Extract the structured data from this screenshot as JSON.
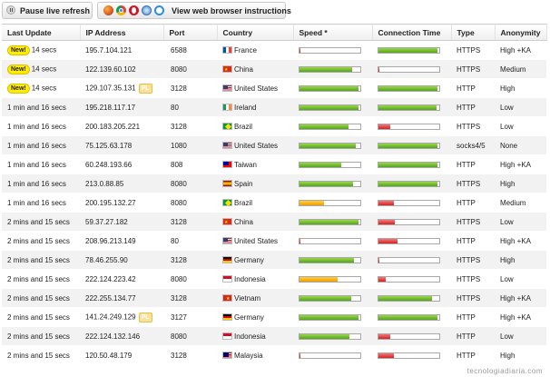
{
  "toolbar": {
    "pause_label": "Pause live refresh",
    "instructions_label": "View web browser instructions",
    "browser_icons": [
      "firefox-icon",
      "chrome-icon",
      "opera-icon",
      "safari-icon",
      "ie-icon"
    ]
  },
  "table": {
    "headers": [
      "Last Update",
      "IP Address",
      "Port",
      "Country",
      "Speed *",
      "Connection Time",
      "Type",
      "Anonymity"
    ],
    "new_badge": "New!",
    "pl_badge": "PL",
    "rows": [
      {
        "update": "14 secs",
        "new": true,
        "ip": "195.7.104.121",
        "pl": false,
        "port": "6588",
        "country": "France",
        "flag": "france",
        "speed": 0.02,
        "speed_color": "red",
        "conn": 0.97,
        "conn_color": "green",
        "type": "HTTPS",
        "anonymity": "High +KA"
      },
      {
        "update": "14 secs",
        "new": true,
        "ip": "122.139.60.102",
        "pl": false,
        "port": "8080",
        "country": "China",
        "flag": "china",
        "speed": 0.87,
        "speed_color": "green",
        "conn": 0.02,
        "conn_color": "red",
        "type": "HTTPS",
        "anonymity": "Medium"
      },
      {
        "update": "14 secs",
        "new": true,
        "ip": "129.107.35.131",
        "pl": true,
        "port": "3128",
        "country": "United States",
        "flag": "us",
        "speed": 0.97,
        "speed_color": "green",
        "conn": 0.97,
        "conn_color": "green",
        "type": "HTTP",
        "anonymity": "High"
      },
      {
        "update": "1 min and 16 secs",
        "new": false,
        "ip": "195.218.117.17",
        "pl": false,
        "port": "80",
        "country": "Ireland",
        "flag": "ireland",
        "speed": 0.97,
        "speed_color": "green",
        "conn": 0.95,
        "conn_color": "green",
        "type": "HTTP",
        "anonymity": "Low"
      },
      {
        "update": "1 min and 16 secs",
        "new": false,
        "ip": "200.183.205.221",
        "pl": false,
        "port": "3128",
        "country": "Brazil",
        "flag": "brazil",
        "speed": 0.8,
        "speed_color": "green",
        "conn": 0.2,
        "conn_color": "red",
        "type": "HTTPS",
        "anonymity": "Low"
      },
      {
        "update": "1 min and 16 secs",
        "new": false,
        "ip": "75.125.63.178",
        "pl": false,
        "port": "1080",
        "country": "United States",
        "flag": "us",
        "speed": 0.92,
        "speed_color": "green",
        "conn": 0.97,
        "conn_color": "green",
        "type": "socks4/5",
        "anonymity": "None"
      },
      {
        "update": "1 min and 16 secs",
        "new": false,
        "ip": "60.248.193.66",
        "pl": false,
        "port": "808",
        "country": "Taiwan",
        "flag": "taiwan",
        "speed": 0.68,
        "speed_color": "green",
        "conn": 0.97,
        "conn_color": "green",
        "type": "HTTP",
        "anonymity": "High +KA"
      },
      {
        "update": "1 min and 16 secs",
        "new": false,
        "ip": "213.0.88.85",
        "pl": false,
        "port": "8080",
        "country": "Spain",
        "flag": "spain",
        "speed": 0.88,
        "speed_color": "green",
        "conn": 0.97,
        "conn_color": "green",
        "type": "HTTPS",
        "anonymity": "High"
      },
      {
        "update": "1 min and 16 secs",
        "new": false,
        "ip": "200.195.132.27",
        "pl": false,
        "port": "8080",
        "country": "Brazil",
        "flag": "brazil",
        "speed": 0.4,
        "speed_color": "orange",
        "conn": 0.25,
        "conn_color": "red",
        "type": "HTTP",
        "anonymity": "Medium"
      },
      {
        "update": "2 mins and 15 secs",
        "new": false,
        "ip": "59.37.27.182",
        "pl": false,
        "port": "3128",
        "country": "China",
        "flag": "china",
        "speed": 0.97,
        "speed_color": "green",
        "conn": 0.27,
        "conn_color": "red",
        "type": "HTTPS",
        "anonymity": "Low"
      },
      {
        "update": "2 mins and 15 secs",
        "new": false,
        "ip": "208.96.213.149",
        "pl": false,
        "port": "80",
        "country": "United States",
        "flag": "us",
        "speed": 0.02,
        "speed_color": "red",
        "conn": 0.32,
        "conn_color": "red",
        "type": "HTTP",
        "anonymity": "High +KA"
      },
      {
        "update": "2 mins and 15 secs",
        "new": false,
        "ip": "78.46.255.90",
        "pl": false,
        "port": "3128",
        "country": "Germany",
        "flag": "germany",
        "speed": 0.9,
        "speed_color": "green",
        "conn": 0.02,
        "conn_color": "red",
        "type": "HTTPS",
        "anonymity": "High"
      },
      {
        "update": "2 mins and 15 secs",
        "new": false,
        "ip": "222.124.223.42",
        "pl": false,
        "port": "8080",
        "country": "Indonesia",
        "flag": "indonesia",
        "speed": 0.62,
        "speed_color": "orange",
        "conn": 0.12,
        "conn_color": "red",
        "type": "HTTPS",
        "anonymity": "Low"
      },
      {
        "update": "2 mins and 15 secs",
        "new": false,
        "ip": "222.255.134.77",
        "pl": false,
        "port": "3128",
        "country": "Vietnam",
        "flag": "vietnam",
        "speed": 0.85,
        "speed_color": "green",
        "conn": 0.88,
        "conn_color": "green",
        "type": "HTTPS",
        "anonymity": "High +KA"
      },
      {
        "update": "2 mins and 15 secs",
        "new": false,
        "ip": "141.24.249.129",
        "pl": true,
        "port": "3127",
        "country": "Germany",
        "flag": "germany",
        "speed": 0.97,
        "speed_color": "green",
        "conn": 0.97,
        "conn_color": "green",
        "type": "HTTP",
        "anonymity": "High +KA"
      },
      {
        "update": "2 mins and 15 secs",
        "new": false,
        "ip": "222.124.132.146",
        "pl": false,
        "port": "8080",
        "country": "Indonesia",
        "flag": "indonesia",
        "speed": 0.82,
        "speed_color": "green",
        "conn": 0.2,
        "conn_color": "red",
        "type": "HTTP",
        "anonymity": "Low"
      },
      {
        "update": "2 mins and 15 secs",
        "new": false,
        "ip": "120.50.48.179",
        "pl": false,
        "port": "3128",
        "country": "Malaysia",
        "flag": "malaysia",
        "speed": 0.02,
        "speed_color": "red",
        "conn": 0.25,
        "conn_color": "red",
        "type": "HTTP",
        "anonymity": "High"
      }
    ]
  },
  "watermark": "tecnologiadiaria.com"
}
